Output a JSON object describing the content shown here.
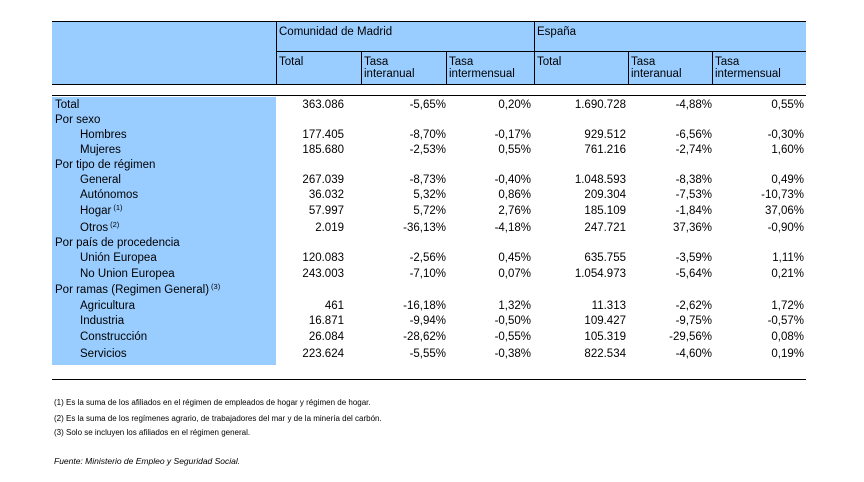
{
  "header": {
    "group_madrid": "Comunidad de Madrid",
    "group_espana": "España",
    "col_total": "Total",
    "col_interanual": "Tasa\ninteranual",
    "col_intermensual": "Tasa\nintermensual"
  },
  "rows": [
    {
      "label": "Total",
      "values": [
        "363.086",
        "-5,65%",
        "0,20%",
        "1.690.728",
        "-4,88%",
        "0,55%"
      ]
    },
    {
      "label": "Por sexo",
      "values": []
    },
    {
      "label": "Hombres",
      "values": [
        "177.405",
        "-8,70%",
        "-0,17%",
        "929.512",
        "-6,56%",
        "-0,30%"
      ]
    },
    {
      "label": "Mujeres",
      "values": [
        "185.680",
        "-2,53%",
        "0,55%",
        "761.216",
        "-2,74%",
        "1,60%"
      ]
    },
    {
      "label": "Por tipo de régimen",
      "values": []
    },
    {
      "label": "General",
      "values": [
        "267.039",
        "-8,73%",
        "-0,40%",
        "1.048.593",
        "-8,38%",
        "0,49%"
      ]
    },
    {
      "label": "Autónomos",
      "values": [
        "36.032",
        "5,32%",
        "0,86%",
        "209.304",
        "-7,53%",
        "-10,73%"
      ]
    },
    {
      "label": "Hogar",
      "note": "(1)",
      "values": [
        "57.997",
        "5,72%",
        "2,76%",
        "185.109",
        "-1,84%",
        "37,06%"
      ]
    },
    {
      "label": "Otros",
      "note": "(2)",
      "values": [
        "2.019",
        "-36,13%",
        "-4,18%",
        "247.721",
        "37,36%",
        "-0,90%"
      ]
    },
    {
      "label": "Por país de procedencia",
      "values": []
    },
    {
      "label": "Unión Europea",
      "values": [
        "120.083",
        "-2,56%",
        "0,45%",
        "635.755",
        "-3,59%",
        "1,11%"
      ]
    },
    {
      "label": "No Union Europea",
      "values": [
        "243.003",
        "-7,10%",
        "0,07%",
        "1.054.973",
        "-5,64%",
        "0,21%"
      ]
    },
    {
      "label": "Por ramas (Regimen General)",
      "note": "(3)",
      "values": []
    },
    {
      "label": "Agricultura",
      "values": [
        "461",
        "-16,18%",
        "1,32%",
        "11.313",
        "-2,62%",
        "1,72%"
      ]
    },
    {
      "label": "Industria",
      "values": [
        "16.871",
        "-9,94%",
        "-0,50%",
        "109.427",
        "-9,75%",
        "-0,57%"
      ]
    },
    {
      "label": "Construcción",
      "values": [
        "26.084",
        "-28,62%",
        "-0,55%",
        "105.319",
        "-29,56%",
        "0,08%"
      ]
    },
    {
      "label": "Servicios",
      "values": [
        "223.624",
        "-5,55%",
        "-0,38%",
        "822.534",
        "-4,60%",
        "0,19%"
      ]
    }
  ],
  "notes": [
    "(1) Es la suma de los afiliados en el régimen de empleados de hogar y régimen de hogar.",
    "(2) Es la suma de los regímenes  agrario, de trabajadores del mar y de la minería del carbón.",
    "(3) Solo se incluyen los afiliados en el régimen general."
  ],
  "source": "Fuente: Ministerio de Empleo y Seguridad Social."
}
